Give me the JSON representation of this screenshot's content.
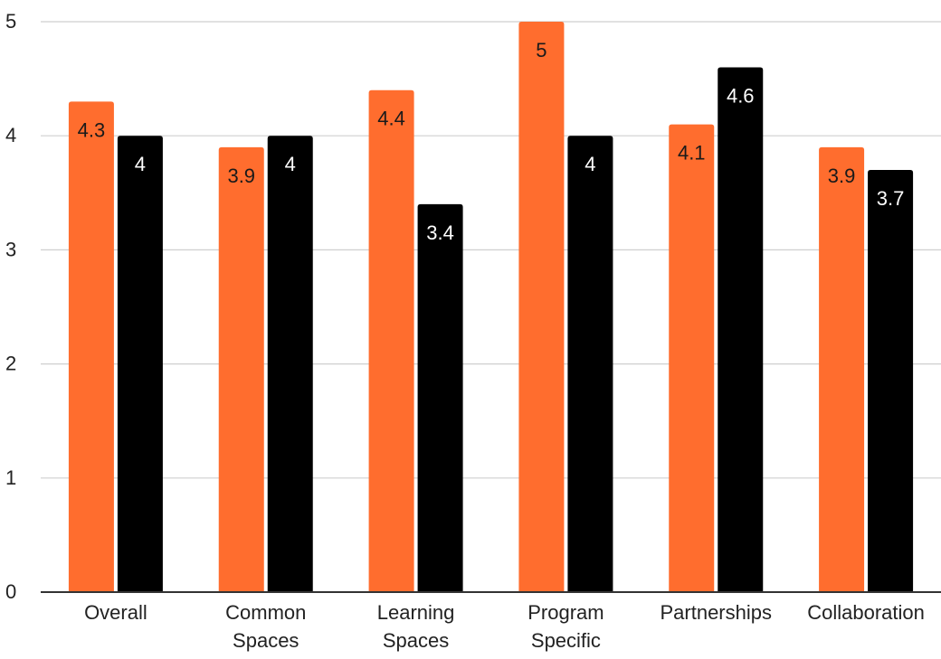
{
  "chart_data": {
    "type": "bar",
    "categories": [
      [
        "Overall"
      ],
      [
        "Common",
        "Spaces"
      ],
      [
        "Learning",
        "Spaces"
      ],
      [
        "Program",
        "Specific"
      ],
      [
        "Partnerships"
      ],
      [
        "Collaboration"
      ]
    ],
    "series": [
      {
        "color": "#ff6d2e",
        "label_color": "#1a1a1a",
        "values": [
          4.3,
          3.9,
          4.4,
          5,
          4.1,
          3.9
        ]
      },
      {
        "color": "#000000",
        "label_color": "#ffffff",
        "values": [
          4,
          4,
          3.4,
          4,
          4.6,
          3.7
        ]
      }
    ],
    "ylim": [
      0,
      5
    ],
    "yticks": [
      0,
      1,
      2,
      3,
      4,
      5
    ],
    "grid": true,
    "title": "",
    "xlabel": "",
    "ylabel": ""
  }
}
